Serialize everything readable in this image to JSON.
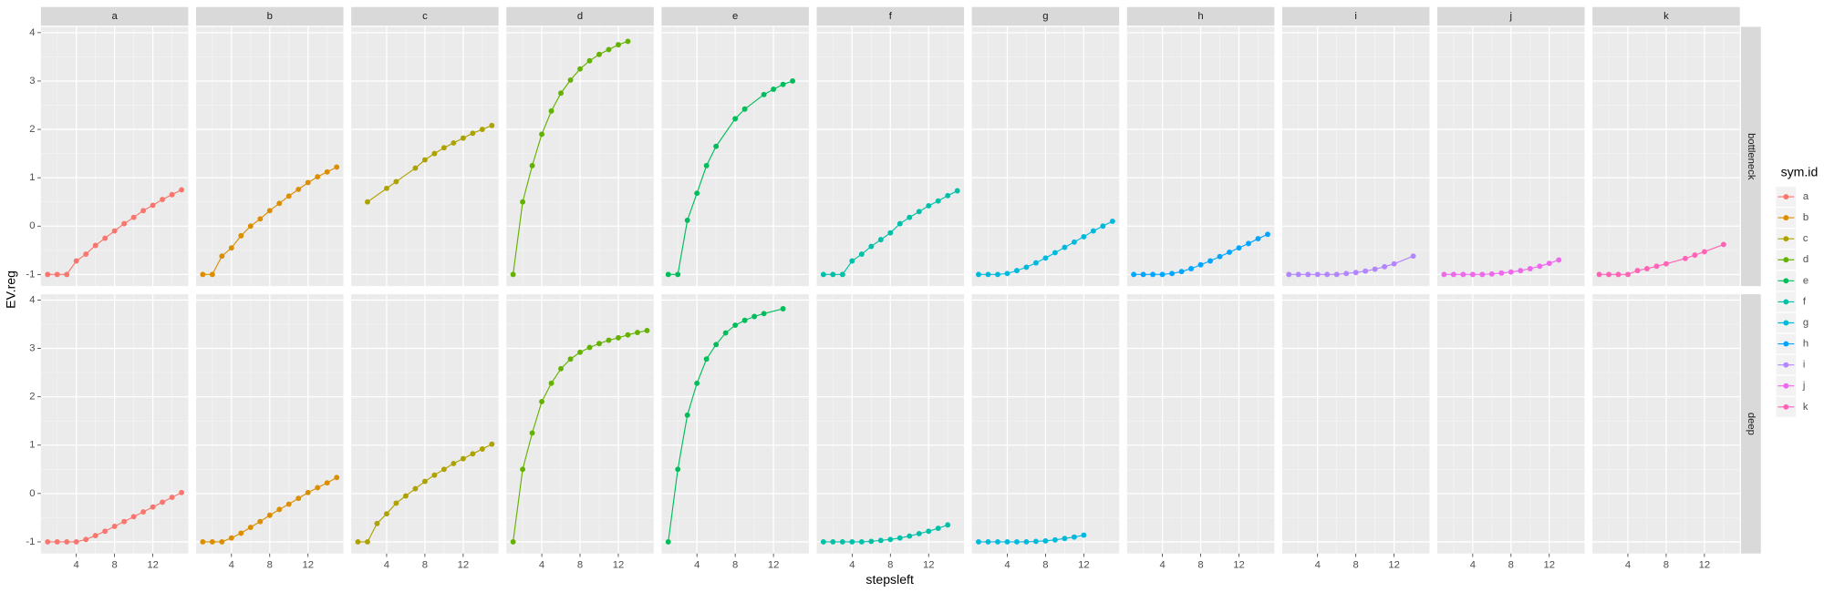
{
  "chart_data": {
    "type": "line",
    "xlabel": "stepsleft",
    "ylabel": "EV.reg",
    "legend_title": "sym.id",
    "columns": [
      "a",
      "b",
      "c",
      "d",
      "e",
      "f",
      "g",
      "h",
      "i",
      "j",
      "k"
    ],
    "rows": [
      "bottleneck",
      "deep"
    ],
    "xlim": [
      0.3,
      15.7
    ],
    "xticks": [
      4,
      8,
      12
    ],
    "ylim": [
      -1.24,
      4.12
    ],
    "yticks": [
      -1,
      0,
      1,
      2,
      3,
      4
    ],
    "grid": true,
    "series": [
      {
        "name": "a",
        "color": "#F8766D",
        "rows": [
          {
            "x": [
              1,
              2,
              3,
              4,
              5,
              6,
              7,
              8,
              9,
              10,
              11,
              12,
              13,
              14,
              15
            ],
            "values": [
              -1,
              -1,
              -1,
              -0.72,
              -0.58,
              -0.4,
              -0.25,
              -0.1,
              0.05,
              0.18,
              0.32,
              0.43,
              0.55,
              0.65,
              0.75
            ]
          },
          {
            "x": [
              1,
              2,
              3,
              4,
              5,
              6,
              7,
              8,
              9,
              10,
              11,
              12,
              13,
              14,
              15
            ],
            "values": [
              -1,
              -1,
              -1,
              -1,
              -0.95,
              -0.87,
              -0.78,
              -0.68,
              -0.58,
              -0.48,
              -0.38,
              -0.28,
              -0.18,
              -0.08,
              0.02
            ]
          }
        ]
      },
      {
        "name": "b",
        "color": "#DB8E00",
        "rows": [
          {
            "x": [
              1,
              2,
              3,
              4,
              5,
              6,
              7,
              8,
              9,
              10,
              11,
              12,
              13,
              14,
              15
            ],
            "values": [
              -1,
              -1,
              -0.62,
              -0.45,
              -0.2,
              0,
              0.15,
              0.32,
              0.47,
              0.62,
              0.76,
              0.9,
              1.02,
              1.12,
              1.22
            ]
          },
          {
            "x": [
              1,
              2,
              3,
              4,
              5,
              6,
              7,
              8,
              9,
              10,
              11,
              12,
              13,
              14,
              15
            ],
            "values": [
              -1,
              -1,
              -1,
              -0.92,
              -0.82,
              -0.7,
              -0.58,
              -0.45,
              -0.33,
              -0.22,
              -0.1,
              0.02,
              0.12,
              0.22,
              0.33
            ]
          }
        ]
      },
      {
        "name": "c",
        "color": "#AEA200",
        "rows": [
          {
            "x": [
              2,
              4,
              5,
              7,
              8,
              9,
              10,
              11,
              12,
              13,
              14,
              15
            ],
            "values": [
              0.5,
              0.78,
              0.92,
              1.2,
              1.37,
              1.5,
              1.62,
              1.72,
              1.82,
              1.92,
              2.0,
              2.08
            ]
          },
          {
            "x": [
              1,
              2,
              3,
              4,
              5,
              6,
              7,
              8,
              9,
              10,
              11,
              12,
              13,
              14,
              15
            ],
            "values": [
              -1,
              -1,
              -0.62,
              -0.42,
              -0.2,
              -0.05,
              0.1,
              0.25,
              0.38,
              0.5,
              0.62,
              0.72,
              0.82,
              0.92,
              1.02
            ]
          }
        ]
      },
      {
        "name": "d",
        "color": "#64B200",
        "rows": [
          {
            "x": [
              1,
              2,
              3,
              4,
              5,
              6,
              7,
              8,
              9,
              10,
              11,
              12,
              13
            ],
            "values": [
              -1,
              0.5,
              1.25,
              1.9,
              2.38,
              2.75,
              3.02,
              3.25,
              3.42,
              3.55,
              3.65,
              3.75,
              3.82
            ]
          },
          {
            "x": [
              1,
              2,
              3,
              4,
              5,
              6,
              7,
              8,
              9,
              10,
              11,
              12,
              13,
              14,
              15
            ],
            "values": [
              -1,
              0.5,
              1.25,
              1.9,
              2.28,
              2.58,
              2.78,
              2.92,
              3.02,
              3.1,
              3.17,
              3.22,
              3.28,
              3.33,
              3.37
            ]
          }
        ]
      },
      {
        "name": "e",
        "color": "#00BD5C",
        "rows": [
          {
            "x": [
              1,
              2,
              3,
              4,
              5,
              6,
              8,
              9,
              11,
              12,
              13,
              14
            ],
            "values": [
              -1,
              -1,
              0.12,
              0.68,
              1.25,
              1.65,
              2.22,
              2.42,
              2.72,
              2.83,
              2.93,
              3.0
            ]
          },
          {
            "x": [
              1,
              2,
              3,
              4,
              5,
              6,
              7,
              8,
              9,
              10,
              11,
              13
            ],
            "values": [
              -1,
              0.5,
              1.62,
              2.28,
              2.78,
              3.08,
              3.32,
              3.48,
              3.58,
              3.66,
              3.72,
              3.82
            ]
          }
        ]
      },
      {
        "name": "f",
        "color": "#00C1A7",
        "rows": [
          {
            "x": [
              1,
              2,
              3,
              4,
              5,
              6,
              7,
              8,
              9,
              10,
              11,
              12,
              13,
              14,
              15
            ],
            "values": [
              -1,
              -1,
              -1,
              -0.72,
              -0.58,
              -0.42,
              -0.28,
              -0.14,
              0.05,
              0.18,
              0.3,
              0.42,
              0.52,
              0.63,
              0.73
            ]
          },
          {
            "x": [
              1,
              2,
              3,
              4,
              5,
              6,
              7,
              8,
              9,
              10,
              11,
              12,
              13,
              14
            ],
            "values": [
              -1,
              -1,
              -1,
              -1,
              -1,
              -0.99,
              -0.97,
              -0.95,
              -0.92,
              -0.88,
              -0.83,
              -0.78,
              -0.72,
              -0.65
            ]
          }
        ]
      },
      {
        "name": "g",
        "color": "#00BADE",
        "rows": [
          {
            "x": [
              1,
              2,
              3,
              4,
              5,
              6,
              7,
              8,
              9,
              10,
              11,
              12,
              13,
              14,
              15
            ],
            "values": [
              -1,
              -1,
              -1,
              -0.98,
              -0.92,
              -0.85,
              -0.76,
              -0.66,
              -0.55,
              -0.44,
              -0.33,
              -0.22,
              -0.1,
              0,
              0.1
            ]
          },
          {
            "x": [
              1,
              2,
              3,
              4,
              5,
              6,
              7,
              8,
              9,
              10,
              11,
              12
            ],
            "values": [
              -1,
              -1,
              -1,
              -1,
              -1,
              -1,
              -0.99,
              -0.98,
              -0.96,
              -0.93,
              -0.9,
              -0.86
            ]
          }
        ]
      },
      {
        "name": "h",
        "color": "#00A6FF",
        "rows": [
          {
            "x": [
              1,
              2,
              3,
              4,
              5,
              6,
              7,
              8,
              9,
              10,
              11,
              12,
              13,
              14,
              15
            ],
            "values": [
              -1,
              -1,
              -1,
              -1,
              -0.98,
              -0.94,
              -0.88,
              -0.8,
              -0.72,
              -0.63,
              -0.54,
              -0.45,
              -0.36,
              -0.26,
              -0.17
            ]
          },
          {
            "x": [],
            "values": []
          }
        ]
      },
      {
        "name": "i",
        "color": "#B385FF",
        "rows": [
          {
            "x": [
              1,
              2,
              3,
              4,
              5,
              6,
              7,
              8,
              9,
              10,
              11,
              12,
              14
            ],
            "values": [
              -1,
              -1,
              -1,
              -1,
              -1,
              -1,
              -0.98,
              -0.96,
              -0.93,
              -0.89,
              -0.84,
              -0.78,
              -0.62
            ]
          },
          {
            "x": [],
            "values": []
          }
        ]
      },
      {
        "name": "j",
        "color": "#EF67EB",
        "rows": [
          {
            "x": [
              1,
              2,
              3,
              4,
              5,
              6,
              7,
              8,
              9,
              10,
              11,
              12,
              13
            ],
            "values": [
              -1,
              -1,
              -1,
              -1,
              -1,
              -0.99,
              -0.97,
              -0.95,
              -0.92,
              -0.88,
              -0.83,
              -0.77,
              -0.7
            ]
          },
          {
            "x": [],
            "values": []
          }
        ]
      },
      {
        "name": "k",
        "color": "#FF63B6",
        "rows": [
          {
            "x": [
              1,
              2,
              3,
              4,
              5,
              6,
              7,
              8,
              10,
              11,
              12,
              14
            ],
            "values": [
              -1,
              -1,
              -1,
              -1,
              -0.92,
              -0.88,
              -0.83,
              -0.78,
              -0.67,
              -0.6,
              -0.53,
              -0.38
            ]
          },
          {
            "x": [],
            "values": []
          }
        ]
      }
    ]
  }
}
